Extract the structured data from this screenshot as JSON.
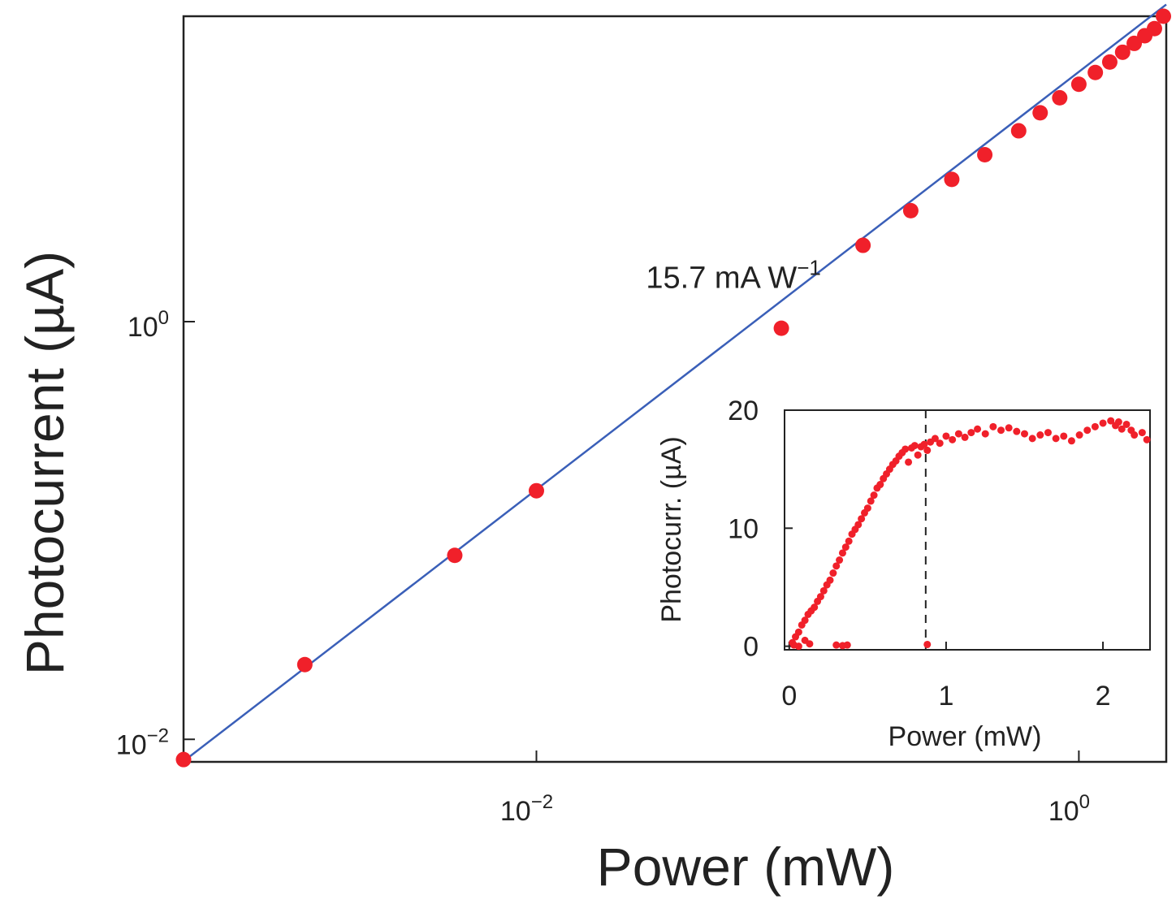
{
  "chart_data": [
    {
      "type": "scatter",
      "title": "",
      "xlabel": "Power (mW)",
      "ylabel": "Photocurrent (µA)",
      "xscale": "log",
      "yscale": "log",
      "xlim": [
        0.0005,
        2.1
      ],
      "ylim": [
        0.0078,
        29
      ],
      "xticks": [
        {
          "value": 0.01,
          "base": "10",
          "exp": "−2"
        },
        {
          "value": 1,
          "base": "10",
          "exp": "0"
        }
      ],
      "yticks": [
        {
          "value": 0.01,
          "base": "10",
          "exp": "−2"
        },
        {
          "value": 1,
          "base": "10",
          "exp": "0"
        }
      ],
      "annotation": {
        "text": "15.7 mA W",
        "sup": "−1",
        "anchor_x": 0.12,
        "anchor_y": 1.9
      },
      "fit": {
        "name": "linear fit",
        "slope_mA_per_W": 15.7,
        "x": [
          0.0005,
          2.1
        ],
        "y": [
          0.00785,
          33.0
        ],
        "color": "#3a5fb8"
      },
      "series": [
        {
          "name": "data",
          "color": "#f0202a",
          "x": [
            0.0005,
            0.0014,
            0.005,
            0.01,
            0.08,
            0.16,
            0.24,
            0.34,
            0.45,
            0.6,
            0.72,
            0.85,
            1.0,
            1.15,
            1.3,
            1.45,
            1.6,
            1.75,
            1.9,
            2.05
          ],
          "y": [
            0.008,
            0.0228,
            0.076,
            0.155,
            0.93,
            2.32,
            3.4,
            4.8,
            6.3,
            8.2,
            10.0,
            11.8,
            13.7,
            15.6,
            17.5,
            19.5,
            21.5,
            23.4,
            25.3,
            29.0
          ]
        }
      ]
    },
    {
      "type": "scatter",
      "title": "",
      "xlabel": "Power (mW)",
      "ylabel": "Photocurr. (µA)",
      "xscale": "linear",
      "yscale": "linear",
      "xlim": [
        -0.03,
        2.3
      ],
      "ylim": [
        -0.3,
        20
      ],
      "xticks": [
        0,
        1,
        2
      ],
      "yticks": [
        0,
        10,
        20
      ],
      "vline": {
        "x": 0.87,
        "style": "dashed"
      },
      "series": [
        {
          "name": "inset data",
          "color": "#f0202a",
          "x": [
            0.02,
            0.04,
            0.06,
            0.08,
            0.1,
            0.12,
            0.14,
            0.16,
            0.18,
            0.2,
            0.22,
            0.24,
            0.26,
            0.28,
            0.3,
            0.32,
            0.34,
            0.36,
            0.38,
            0.4,
            0.42,
            0.44,
            0.46,
            0.48,
            0.5,
            0.52,
            0.54,
            0.56,
            0.58,
            0.6,
            0.62,
            0.64,
            0.66,
            0.68,
            0.7,
            0.72,
            0.74,
            0.76,
            0.78,
            0.8,
            0.82,
            0.84,
            0.86,
            0.88,
            0.9,
            0.93,
            0.96,
            1.0,
            1.04,
            1.08,
            1.12,
            1.16,
            1.2,
            1.25,
            1.3,
            1.35,
            1.4,
            1.45,
            1.5,
            1.55,
            1.6,
            1.65,
            1.7,
            1.75,
            1.8,
            1.85,
            1.9,
            1.95,
            2.0,
            2.05,
            2.08,
            2.1,
            2.12,
            2.15,
            2.18,
            2.2,
            2.25,
            2.28,
            0.03,
            0.06,
            0.1,
            0.13,
            0.3,
            0.34,
            0.37,
            0.88
          ],
          "y": [
            0.3,
            0.8,
            1.2,
            1.8,
            2.2,
            2.7,
            3.0,
            3.3,
            3.8,
            4.2,
            4.7,
            5.2,
            5.6,
            6.2,
            6.8,
            7.3,
            7.9,
            8.4,
            8.9,
            9.5,
            9.9,
            10.3,
            10.8,
            11.3,
            11.7,
            12.3,
            12.8,
            13.4,
            13.7,
            14.2,
            14.6,
            15.0,
            15.4,
            15.7,
            16.1,
            16.4,
            16.7,
            15.6,
            16.8,
            17.0,
            16.2,
            16.9,
            17.1,
            16.6,
            17.3,
            17.6,
            17.2,
            17.8,
            17.5,
            18.0,
            17.7,
            18.1,
            18.4,
            18.0,
            18.6,
            18.3,
            18.5,
            18.2,
            18.0,
            17.6,
            17.9,
            18.1,
            17.6,
            17.8,
            17.4,
            17.9,
            18.3,
            18.6,
            18.9,
            19.1,
            18.7,
            19.0,
            18.4,
            18.8,
            18.3,
            17.9,
            18.1,
            17.5,
            0.1,
            0.0,
            0.5,
            0.2,
            0.1,
            0.05,
            0.1,
            0.15
          ]
        }
      ]
    }
  ]
}
